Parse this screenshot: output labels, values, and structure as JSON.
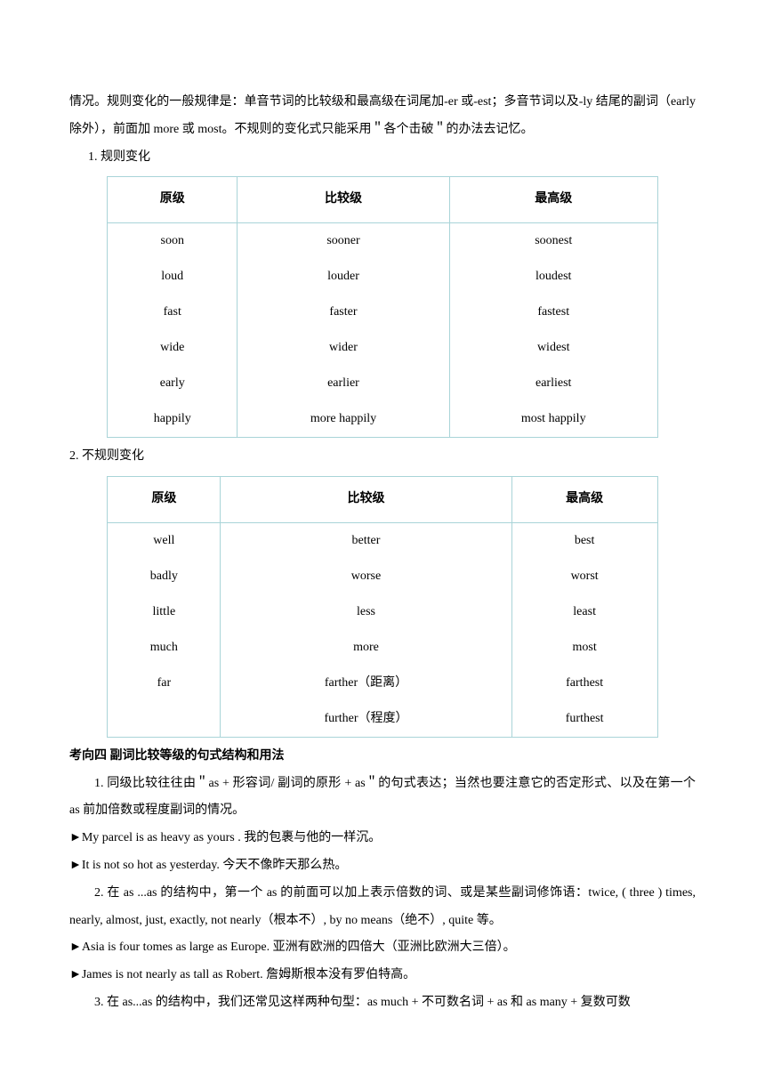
{
  "intro_para": "情况。规则变化的一般规律是：单音节词的比较级和最高级在词尾加-er 或-est；多音节词以及-ly 结尾的副词（early 除外），前面加 more 或 most。不规则的变化式只能采用＂各个击破＂的办法去记忆。",
  "section1_title": "1. 规则变化",
  "table_headers": {
    "col1": "原级",
    "col2": "比较级",
    "col3": "最高级"
  },
  "table1_rows": [
    {
      "c1": "soon",
      "c2": "sooner",
      "c3": "soonest"
    },
    {
      "c1": "loud",
      "c2": "louder",
      "c3": "loudest"
    },
    {
      "c1": "fast",
      "c2": "faster",
      "c3": "fastest"
    },
    {
      "c1": "wide",
      "c2": "wider",
      "c3": "widest"
    },
    {
      "c1": "early",
      "c2": "earlier",
      "c3": "earliest"
    },
    {
      "c1": "happily",
      "c2": "more happily",
      "c3": "most happily"
    }
  ],
  "section2_title": "2. 不规则变化",
  "table2_rows": [
    {
      "c1": "well",
      "c2": "better",
      "c3": "best"
    },
    {
      "c1": "badly",
      "c2": "worse",
      "c3": "worst"
    },
    {
      "c1": "little",
      "c2": "less",
      "c3": "least"
    },
    {
      "c1": "much",
      "c2": "more",
      "c3": "most"
    },
    {
      "c1": "far",
      "c2": "farther（距离）",
      "c3": "farthest"
    },
    {
      "c1": "",
      "c2": "further（程度）",
      "c3": "furthest"
    }
  ],
  "topic4_heading": "考向四 副词比较等级的句式结构和用法",
  "point1": "1. 同级比较往往由＂as +  形容词/  副词的原形  + as＂的句式表达；当然也要注意它的否定形式、以及在第一个 as 前加倍数或程度副词的情况。",
  "example1": "►My parcel is as heavy as yours .  我的包裹与他的一样沉。",
  "example2": "►It is not so hot as yesterday.  今天不像昨天那么热。",
  "point2": "2.  在 as ...as  的结构中，第一个 as 的前面可以加上表示倍数的词、或是某些副词修饰语：twice, ( three ) times, nearly, almost, just, exactly, not nearly（根本不）, by no means（绝不）, quite 等。",
  "example3": "►Asia is four tomes as large as Europe.  亚洲有欧洲的四倍大（亚洲比欧洲大三倍）。",
  "example4": "►James is not nearly as tall as Robert.  詹姆斯根本没有罗伯特高。",
  "point3": "3.  在 as...as  的结构中，我们还常见这样两种句型：as much +  不可数名词  + as  和 as many +  复数可数",
  "colors": {
    "border": "#a9d4d8",
    "text": "#000000",
    "background": "#ffffff"
  },
  "typography": {
    "body_fontsize": 14,
    "line_height": 2.2,
    "font_family_cn": "SimSun",
    "font_family_en": "Times New Roman"
  }
}
